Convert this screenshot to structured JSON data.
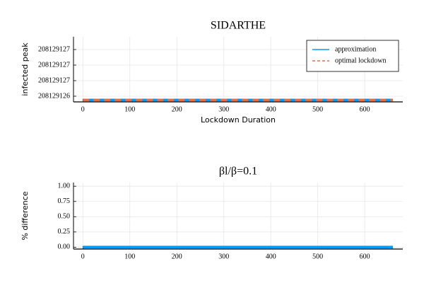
{
  "chart_data": [
    {
      "type": "line",
      "title": "SIDARTHE",
      "x_label": "Lockdown Duration",
      "y_label": "infected peak",
      "x": [
        0,
        60,
        120,
        180,
        240,
        300,
        360,
        420,
        480,
        540,
        600,
        660
      ],
      "series": [
        {
          "name": "approximation",
          "color": "#009af9",
          "dashed": false,
          "values": [
            208129126.35,
            208129126.35,
            208129126.35,
            208129126.35,
            208129126.35,
            208129126.35,
            208129126.35,
            208129126.35,
            208129126.35,
            208129126.35,
            208129126.35,
            208129126.35
          ]
        },
        {
          "name": "optimal lockdown",
          "color": "#e26f46",
          "dashed": true,
          "values": [
            208129126.35,
            208129126.35,
            208129126.35,
            208129126.35,
            208129126.35,
            208129126.35,
            208129126.35,
            208129126.35,
            208129126.35,
            208129126.35,
            208129126.35,
            208129126.35
          ]
        }
      ],
      "xlim": [
        -20,
        681
      ],
      "xticks": [
        0,
        100,
        200,
        300,
        400,
        500,
        600
      ],
      "ylim": [
        208129126.327,
        208129127.164
      ],
      "yticks": [
        {
          "value": 208129126.4,
          "label": "208129126"
        },
        {
          "value": 208129126.6,
          "label": "208129127"
        },
        {
          "value": 208129126.8,
          "label": "208129127"
        },
        {
          "value": 208129127.0,
          "label": "208129127"
        }
      ],
      "grid": true,
      "legend": "top-right"
    },
    {
      "type": "line",
      "title": "βl/β=0.1",
      "y_label": "% difference",
      "x": [
        0,
        60,
        120,
        180,
        240,
        300,
        360,
        420,
        480,
        540,
        600,
        660
      ],
      "series": [
        {
          "color": "#009af9",
          "dashed": false,
          "values": [
            0,
            0,
            0,
            0,
            0,
            0,
            0,
            0,
            0,
            0,
            0,
            0
          ]
        }
      ],
      "xlim": [
        -20,
        681
      ],
      "xticks": [
        0,
        100,
        200,
        300,
        400,
        500,
        600
      ],
      "ylim": [
        -0.03,
        1.06
      ],
      "yticks": [
        {
          "value": 0,
          "label": "0.00"
        },
        {
          "value": 0.25,
          "label": "0.25"
        },
        {
          "value": 0.5,
          "label": "0.50"
        },
        {
          "value": 0.75,
          "label": "0.75"
        },
        {
          "value": 1,
          "label": "1.00"
        }
      ],
      "grid": true
    }
  ]
}
